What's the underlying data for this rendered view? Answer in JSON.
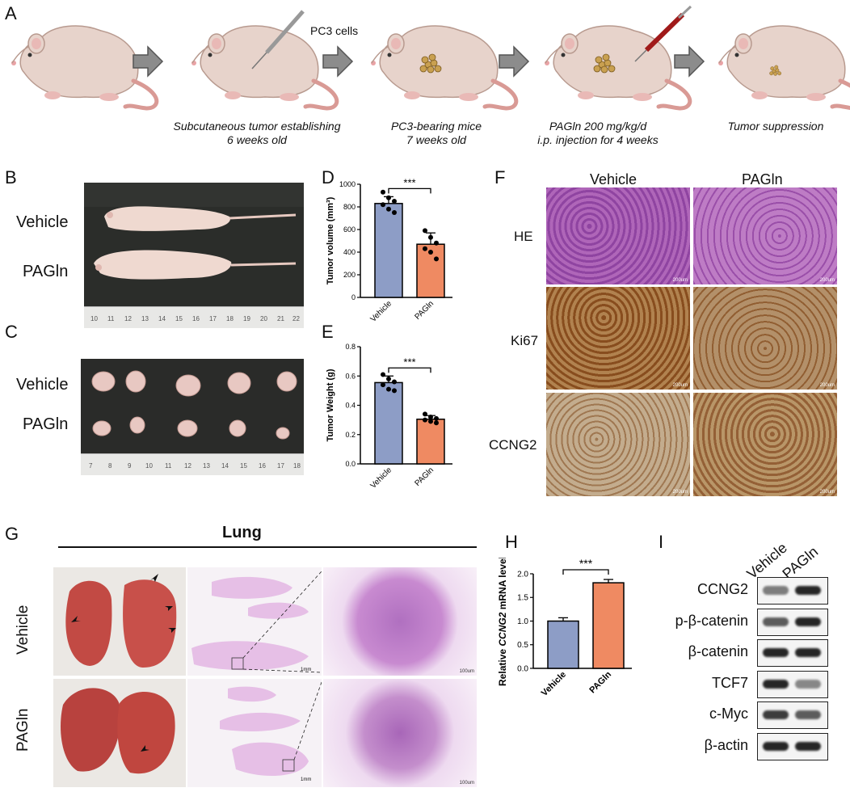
{
  "panels": {
    "A": "A",
    "B": "B",
    "C": "C",
    "D": "D",
    "E": "E",
    "F": "F",
    "G": "G",
    "H": "H",
    "I": "I"
  },
  "panel_a": {
    "injection_label": "PC3 cells",
    "captions": [
      {
        "line1": "Subcutaneous tumor establishing",
        "line2": "6 weeks old"
      },
      {
        "line1": "PC3-bearing mice",
        "line2": "7 weeks old"
      },
      {
        "line1": "PAGln 200 mg/kg/d",
        "line2": "i.p. injection for 4 weeks"
      },
      {
        "line1": "Tumor suppression",
        "line2": ""
      }
    ]
  },
  "panel_b": {
    "row1": "Vehicle",
    "row2": "PAGln",
    "ruler_ticks": [
      "10",
      "11",
      "12",
      "13",
      "14",
      "15",
      "16",
      "17",
      "18",
      "19",
      "20",
      "21",
      "22"
    ]
  },
  "panel_c": {
    "row1": "Vehicle",
    "row2": "PAGln",
    "ruler_ticks": [
      "7",
      "8",
      "9",
      "10",
      "11",
      "12",
      "13",
      "14",
      "15",
      "16",
      "17",
      "18"
    ]
  },
  "panel_f": {
    "col_headers": [
      "Vehicle",
      "PAGln"
    ],
    "row_labels": [
      "HE",
      "Ki67",
      "CCNG2"
    ],
    "scale_label": "200um"
  },
  "panel_g": {
    "title": "Lung",
    "row_labels": [
      "Vehicle",
      "PAGln"
    ],
    "scale_small": "1mm",
    "scale_large": "100um"
  },
  "panel_i": {
    "col_headers": [
      "Vehicle",
      "PAGln"
    ],
    "rows": [
      {
        "label": "CCNG2",
        "bands": [
          0.55,
          0.95
        ]
      },
      {
        "label": "p-β-catenin",
        "bands": [
          0.7,
          0.95
        ]
      },
      {
        "label": "β-catenin",
        "bands": [
          0.95,
          0.95
        ]
      },
      {
        "label": "TCF7",
        "bands": [
          0.95,
          0.5
        ]
      },
      {
        "label": "c-Myc",
        "bands": [
          0.85,
          0.7
        ]
      },
      {
        "label": "β-actin",
        "bands": [
          0.95,
          0.95
        ]
      }
    ]
  },
  "chart_data": [
    {
      "panel": "D",
      "type": "bar",
      "categories": [
        "Vehicle",
        "PAGln"
      ],
      "values": [
        830,
        470
      ],
      "errors": [
        60,
        100
      ],
      "points": [
        [
          930,
          880,
          850,
          820,
          780,
          750
        ],
        [
          590,
          530,
          480,
          430,
          400,
          340
        ]
      ],
      "colors": [
        "#8d9dc6",
        "#ef8a62"
      ],
      "ylabel": "Tumor volume (mm³)",
      "ylim": [
        0,
        1000
      ],
      "yticks": [
        "0",
        "200",
        "400",
        "600",
        "800",
        "1000"
      ],
      "significance": "***"
    },
    {
      "panel": "E",
      "type": "bar",
      "categories": [
        "Vehicle",
        "PAGln"
      ],
      "values": [
        0.555,
        0.305
      ],
      "errors": [
        0.045,
        0.025
      ],
      "points": [
        [
          0.61,
          0.58,
          0.56,
          0.54,
          0.51,
          0.5
        ],
        [
          0.34,
          0.32,
          0.31,
          0.3,
          0.29,
          0.28
        ]
      ],
      "colors": [
        "#8d9dc6",
        "#ef8a62"
      ],
      "ylabel": "Tumor Weight (g)",
      "ylim": [
        0,
        0.8
      ],
      "yticks": [
        "0.0",
        "0.2",
        "0.4",
        "0.6",
        "0.8"
      ],
      "significance": "***"
    },
    {
      "panel": "H",
      "type": "bar",
      "categories": [
        "Vehicle",
        "PAGln"
      ],
      "values": [
        1.0,
        1.81
      ],
      "errors": [
        0.07,
        0.07
      ],
      "points": [],
      "colors": [
        "#8d9dc6",
        "#ef8a62"
      ],
      "ylabel_pre": "Relative ",
      "ylabel_italic": "CCNG2",
      "ylabel_post": " mRNA level",
      "ylim": [
        0,
        2.0
      ],
      "yticks": [
        "0.0",
        "0.5",
        "1.0",
        "1.5",
        "2.0"
      ],
      "significance": "***"
    }
  ]
}
